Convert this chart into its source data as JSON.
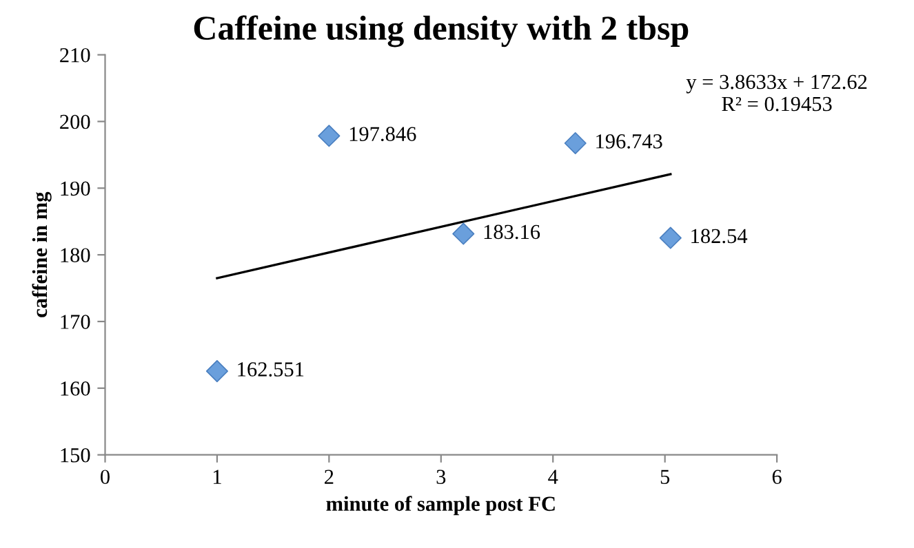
{
  "chart_data": {
    "type": "scatter",
    "title": "Caffeine using density with 2 tbsp",
    "xlabel": "minute of sample post FC",
    "ylabel": "caffeine in mg",
    "xlim": [
      0,
      6
    ],
    "ylim": [
      150,
      210
    ],
    "xticks": [
      0,
      1,
      2,
      3,
      4,
      5,
      6
    ],
    "yticks": [
      150,
      160,
      170,
      180,
      190,
      200,
      210
    ],
    "grid": false,
    "legend": false,
    "series": [
      {
        "marker": "diamond",
        "color": "#6a9fdc",
        "x": [
          1,
          2,
          3.2,
          4.2,
          5.05
        ],
        "values": [
          162.551,
          197.846,
          183.16,
          196.743,
          182.54
        ],
        "value_labels": [
          "162.551",
          "197.846",
          "183.16",
          "196.743",
          "182.54"
        ]
      },
      {
        "type": "line",
        "color": "#000000",
        "x": [
          1,
          5.05
        ],
        "values": [
          176.5,
          192.1
        ],
        "line_style": "solid"
      }
    ],
    "annotations": [
      "y = 3.8633x + 172.62\nR² = 0.19453"
    ]
  }
}
